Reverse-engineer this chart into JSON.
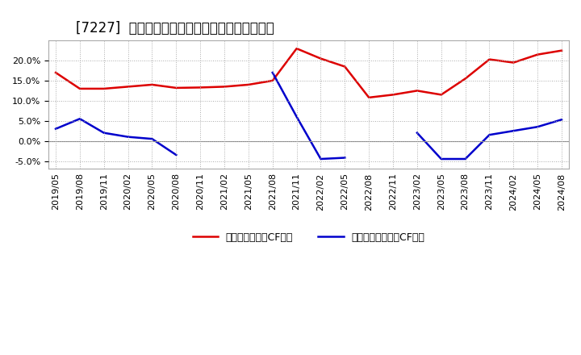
{
  "title": "[7227]  有利子負債キャッシュフロー比率の推移",
  "x_labels": [
    "2019/05",
    "2019/08",
    "2019/11",
    "2020/02",
    "2020/05",
    "2020/08",
    "2020/11",
    "2021/02",
    "2021/05",
    "2021/08",
    "2021/11",
    "2022/02",
    "2022/05",
    "2022/08",
    "2022/11",
    "2023/02",
    "2023/05",
    "2023/08",
    "2023/11",
    "2024/02",
    "2024/05",
    "2024/08"
  ],
  "red_values": [
    17.0,
    13.0,
    13.0,
    13.5,
    14.0,
    13.2,
    13.3,
    13.5,
    14.0,
    15.0,
    23.0,
    20.5,
    18.5,
    10.8,
    11.5,
    12.5,
    11.5,
    15.5,
    20.3,
    19.5,
    21.5,
    22.5
  ],
  "blue_values": [
    3.0,
    5.5,
    2.0,
    1.0,
    0.5,
    -3.5,
    null,
    null,
    null,
    17.0,
    6.0,
    -4.5,
    -4.2,
    null,
    null,
    2.0,
    -4.5,
    -4.5,
    1.5,
    2.5,
    3.5,
    5.3
  ],
  "red_color": "#dd0000",
  "blue_color": "#0000cc",
  "bg_color": "#ffffff",
  "plot_bg_color": "#ffffff",
  "grid_color": "#aaaaaa",
  "ylim": [
    -7.0,
    25.0
  ],
  "yticks": [
    -5.0,
    0.0,
    5.0,
    10.0,
    15.0,
    20.0
  ],
  "legend_red": "有利子負債営業CF比率",
  "legend_blue": "有利子負債フリーCF比率",
  "title_fontsize": 12,
  "axis_fontsize": 8,
  "legend_fontsize": 9
}
